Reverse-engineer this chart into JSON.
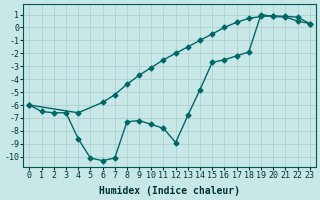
{
  "bg_color": "#c8e8e8",
  "line_color": "#006666",
  "grid_color": "#aacccc",
  "xlim": [
    -0.5,
    23.5
  ],
  "ylim": [
    -10.8,
    1.8
  ],
  "yticks": [
    1,
    0,
    -1,
    -2,
    -3,
    -4,
    -5,
    -6,
    -7,
    -8,
    -9,
    -10
  ],
  "xticks": [
    0,
    1,
    2,
    3,
    4,
    5,
    6,
    7,
    8,
    9,
    10,
    11,
    12,
    13,
    14,
    15,
    16,
    17,
    18,
    19,
    20,
    21,
    22,
    23
  ],
  "line1_x": [
    0,
    1,
    2,
    3,
    4,
    5,
    6,
    7,
    8,
    9,
    10,
    11,
    12,
    13,
    14,
    15,
    16,
    17,
    18,
    19,
    20,
    21,
    22,
    23
  ],
  "line1_y": [
    -6.0,
    -6.5,
    -6.6,
    -6.6,
    -8.6,
    -10.1,
    -10.3,
    -10.1,
    -7.3,
    -7.2,
    -7.5,
    -7.8,
    -8.9,
    -6.8,
    -4.8,
    -2.7,
    -2.5,
    -2.2,
    -1.9,
    1.0,
    0.85,
    0.8,
    0.5,
    0.3
  ],
  "line2_x": [
    0,
    4,
    6,
    7,
    8,
    9,
    10,
    11,
    12,
    13,
    14,
    15,
    16,
    17,
    18,
    19,
    20,
    21,
    22,
    23
  ],
  "line2_y": [
    -6.0,
    -6.6,
    -5.8,
    -5.2,
    -4.4,
    -3.7,
    -3.1,
    -2.5,
    -2.0,
    -1.5,
    -1.0,
    -0.5,
    0.0,
    0.4,
    0.7,
    0.85,
    0.9,
    0.85,
    0.8,
    0.3
  ],
  "xlabel": "Humidex (Indice chaleur)",
  "markersize": 2.5,
  "linewidth": 1.0,
  "xlabel_fontsize": 7,
  "tick_fontsize": 6
}
